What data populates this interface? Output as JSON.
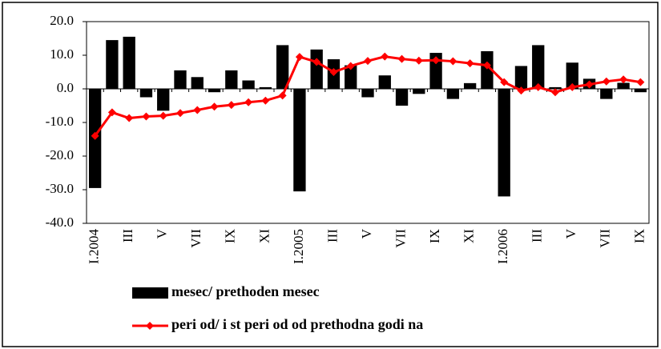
{
  "chart_data": {
    "type": "bar",
    "categories": [
      "I.2004",
      null,
      "III",
      null,
      "V",
      null,
      "VII",
      null,
      "IX",
      null,
      "XI",
      null,
      "I.2005",
      null,
      "III",
      null,
      "V",
      null,
      "VII",
      null,
      "IX",
      null,
      "XI",
      null,
      "I.2006",
      null,
      "III",
      null,
      "V",
      null,
      "VII",
      null,
      "IX"
    ],
    "series": [
      {
        "name": "mesec/ prethoden mesec",
        "type": "bar",
        "color": "#000000",
        "values": [
          -29.5,
          14.5,
          15.5,
          -2.5,
          -6.5,
          5.5,
          3.5,
          -1,
          5.5,
          2.5,
          0.5,
          13,
          -30.5,
          11.7,
          8.8,
          7,
          -2.5,
          4,
          -5,
          -1.5,
          10.7,
          -3,
          1.7,
          11.2,
          -32,
          6.8,
          13,
          0.5,
          7.8,
          3,
          -3,
          1.8,
          -1
        ]
      },
      {
        "name": "peri od/ i st peri od od prethodna godi na",
        "type": "line",
        "color": "#ff0000",
        "values": [
          -14,
          -7,
          -8.7,
          -8.2,
          -8,
          -7.2,
          -6.3,
          -5.3,
          -4.8,
          -4,
          -3.5,
          -2,
          9.5,
          8,
          5,
          6.8,
          8.3,
          9.6,
          8.9,
          8.4,
          8.5,
          8.2,
          7.6,
          7,
          2,
          -0.5,
          0.5,
          -1,
          0.5,
          1.3,
          2.2,
          2.8,
          2
        ]
      }
    ],
    "ylim": [
      -40,
      20
    ],
    "yticks": [
      {
        "value": 20,
        "label": "20.0"
      },
      {
        "value": 10,
        "label": "10.0"
      },
      {
        "value": 0,
        "label": "0.0"
      },
      {
        "value": -10,
        "label": "-10.0"
      },
      {
        "value": -20,
        "label": "-20.0"
      },
      {
        "value": -30,
        "label": "-30.0"
      },
      {
        "value": -40,
        "label": "-40.0"
      }
    ]
  }
}
